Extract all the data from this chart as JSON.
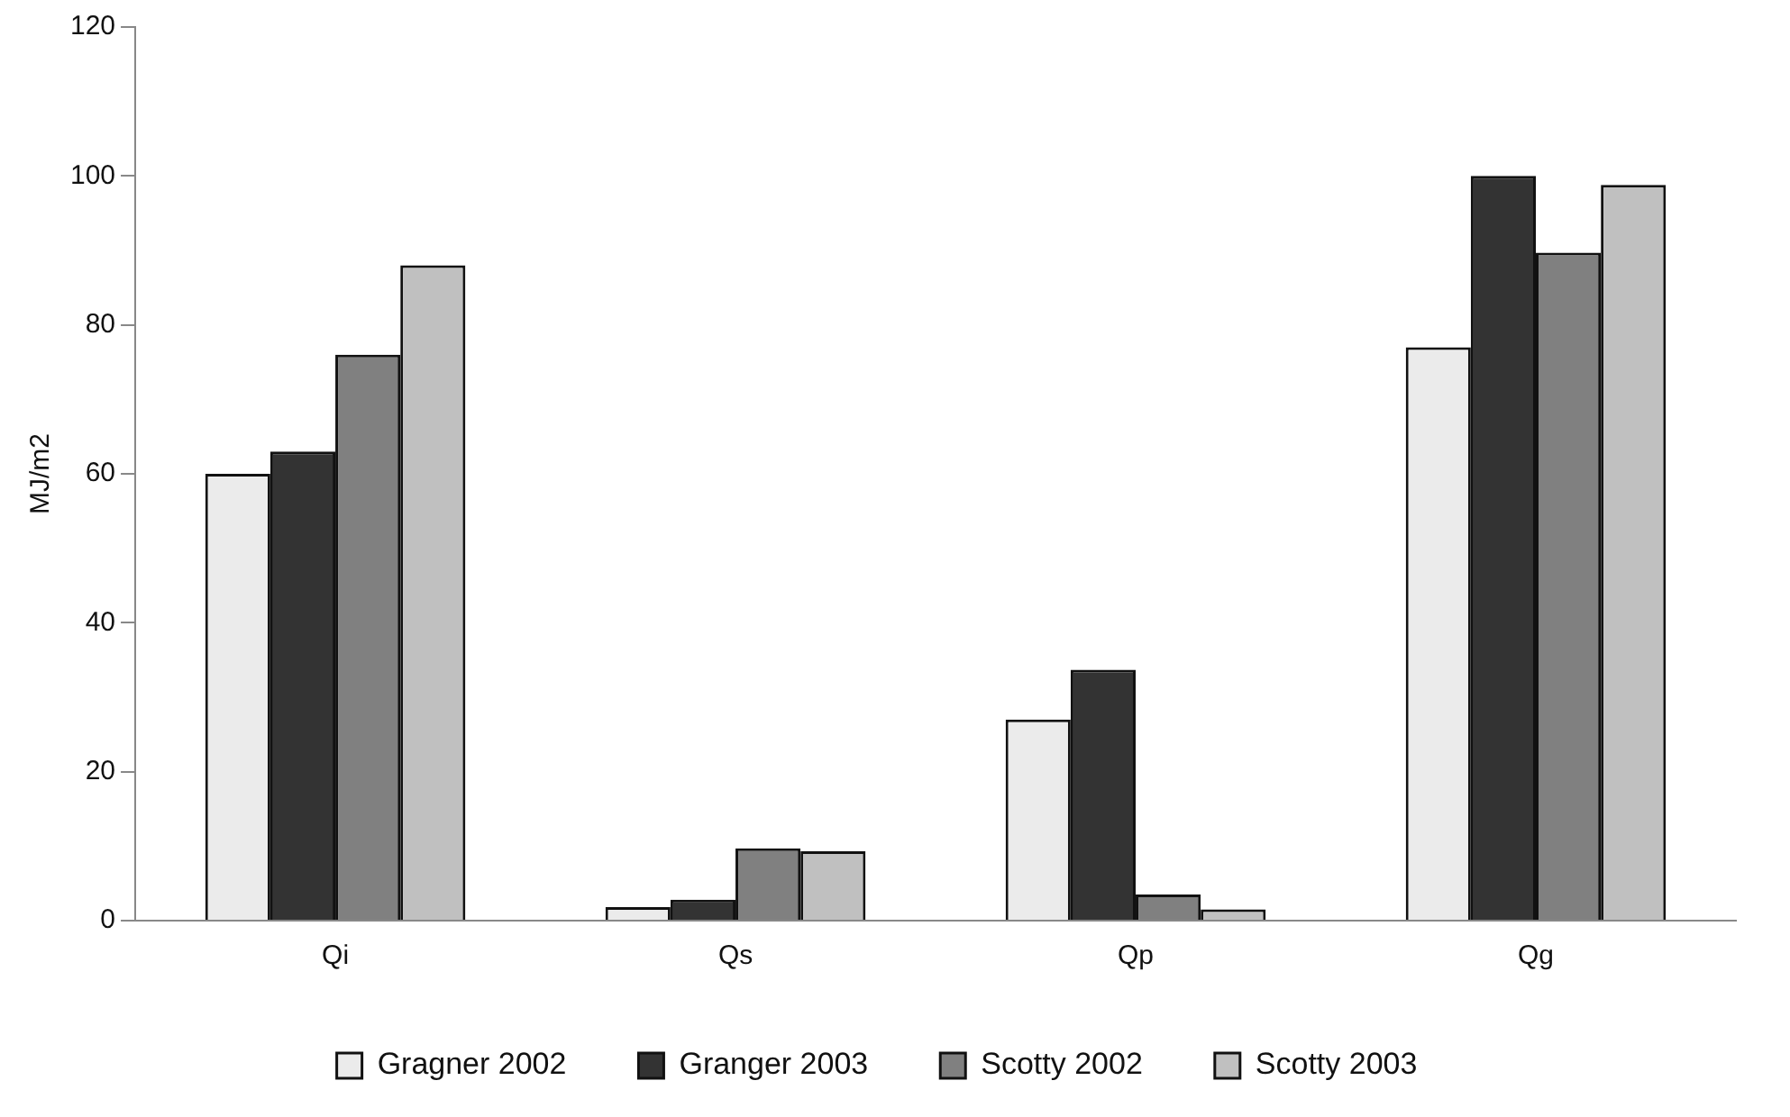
{
  "chart_data": {
    "type": "bar",
    "ylabel": "MJ/m2",
    "categories": [
      "Qi",
      "Qs",
      "Qp",
      "Qg"
    ],
    "series": [
      {
        "name": "Gragner 2002",
        "color": "#ebebeb",
        "values": [
          60,
          1.8,
          27,
          77
        ]
      },
      {
        "name": "Granger 2003",
        "color": "#333333",
        "values": [
          63,
          2.8,
          33.7,
          100
        ]
      },
      {
        "name": "Scotty 2002",
        "color": "#808080",
        "values": [
          76,
          9.7,
          3.5,
          89.7
        ]
      },
      {
        "name": "Scotty 2003",
        "color": "#c0c0c0",
        "values": [
          88,
          9.3,
          1.5,
          98.8
        ]
      }
    ],
    "ylim": [
      0,
      120
    ],
    "yticks": [
      0,
      20,
      40,
      60,
      80,
      100,
      120
    ],
    "grid": false,
    "legend": "bottom"
  }
}
